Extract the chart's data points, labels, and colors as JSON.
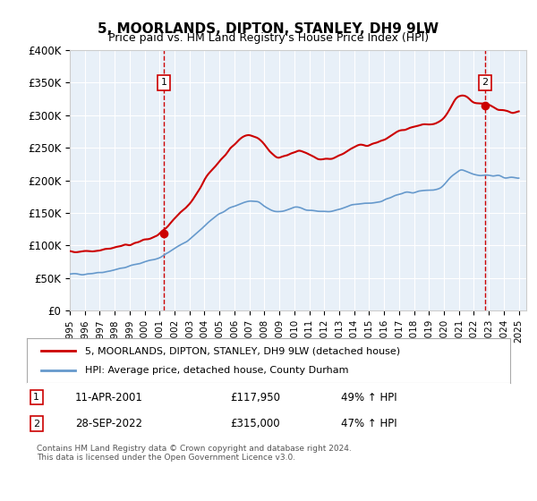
{
  "title": "5, MOORLANDS, DIPTON, STANLEY, DH9 9LW",
  "subtitle": "Price paid vs. HM Land Registry's House Price Index (HPI)",
  "background_color": "#e8f0f8",
  "plot_bg_color": "#e8f0f8",
  "ylim": [
    0,
    400000
  ],
  "yticks": [
    0,
    50000,
    100000,
    150000,
    200000,
    250000,
    300000,
    350000,
    400000
  ],
  "ytick_labels": [
    "£0",
    "£50K",
    "£100K",
    "£150K",
    "£200K",
    "£250K",
    "£300K",
    "£350K",
    "£400K"
  ],
  "sale1_date": 2001.27,
  "sale1_price": 117950,
  "sale1_label": "1",
  "sale2_date": 2022.74,
  "sale2_price": 315000,
  "sale2_label": "2",
  "legend_line1": "5, MOORLANDS, DIPTON, STANLEY, DH9 9LW (detached house)",
  "legend_line2": "HPI: Average price, detached house, County Durham",
  "annotation1": "1     11-APR-2001          £117,950          49% ↑ HPI",
  "annotation2": "2     28-SEP-2022          £315,000          47% ↑ HPI",
  "footer": "Contains HM Land Registry data © Crown copyright and database right 2024.\nThis data is licensed under the Open Government Licence v3.0.",
  "line_color_red": "#cc0000",
  "line_color_blue": "#6699cc",
  "hpi_years": [
    1995,
    1996,
    1997,
    1998,
    1999,
    2000,
    2001,
    2002,
    2003,
    2004,
    2005,
    2006,
    2007,
    2008,
    2009,
    2010,
    2011,
    2012,
    2013,
    2014,
    2015,
    2016,
    2017,
    2018,
    2019,
    2020,
    2021,
    2022,
    2023,
    2024,
    2025
  ],
  "hpi_values": [
    55000,
    57000,
    59000,
    63000,
    68000,
    75000,
    82000,
    95000,
    110000,
    130000,
    148000,
    160000,
    168000,
    160000,
    152000,
    158000,
    155000,
    152000,
    155000,
    162000,
    165000,
    170000,
    178000,
    182000,
    185000,
    192000,
    215000,
    210000,
    208000,
    205000,
    205000
  ],
  "property_years": [
    1995,
    1996,
    1997,
    1998,
    1999,
    2000,
    2001,
    2002,
    2003,
    2004,
    2005,
    2006,
    2007,
    2008,
    2009,
    2010,
    2011,
    2012,
    2013,
    2014,
    2015,
    2016,
    2017,
    2018,
    2019,
    2020,
    2021,
    2022,
    2023,
    2024,
    2025
  ],
  "property_values": [
    90000,
    92000,
    94000,
    97000,
    102000,
    108000,
    118000,
    140000,
    165000,
    200000,
    230000,
    255000,
    270000,
    255000,
    235000,
    245000,
    238000,
    232000,
    238000,
    250000,
    255000,
    262000,
    275000,
    280000,
    285000,
    295000,
    330000,
    320000,
    315000,
    308000,
    305000
  ]
}
